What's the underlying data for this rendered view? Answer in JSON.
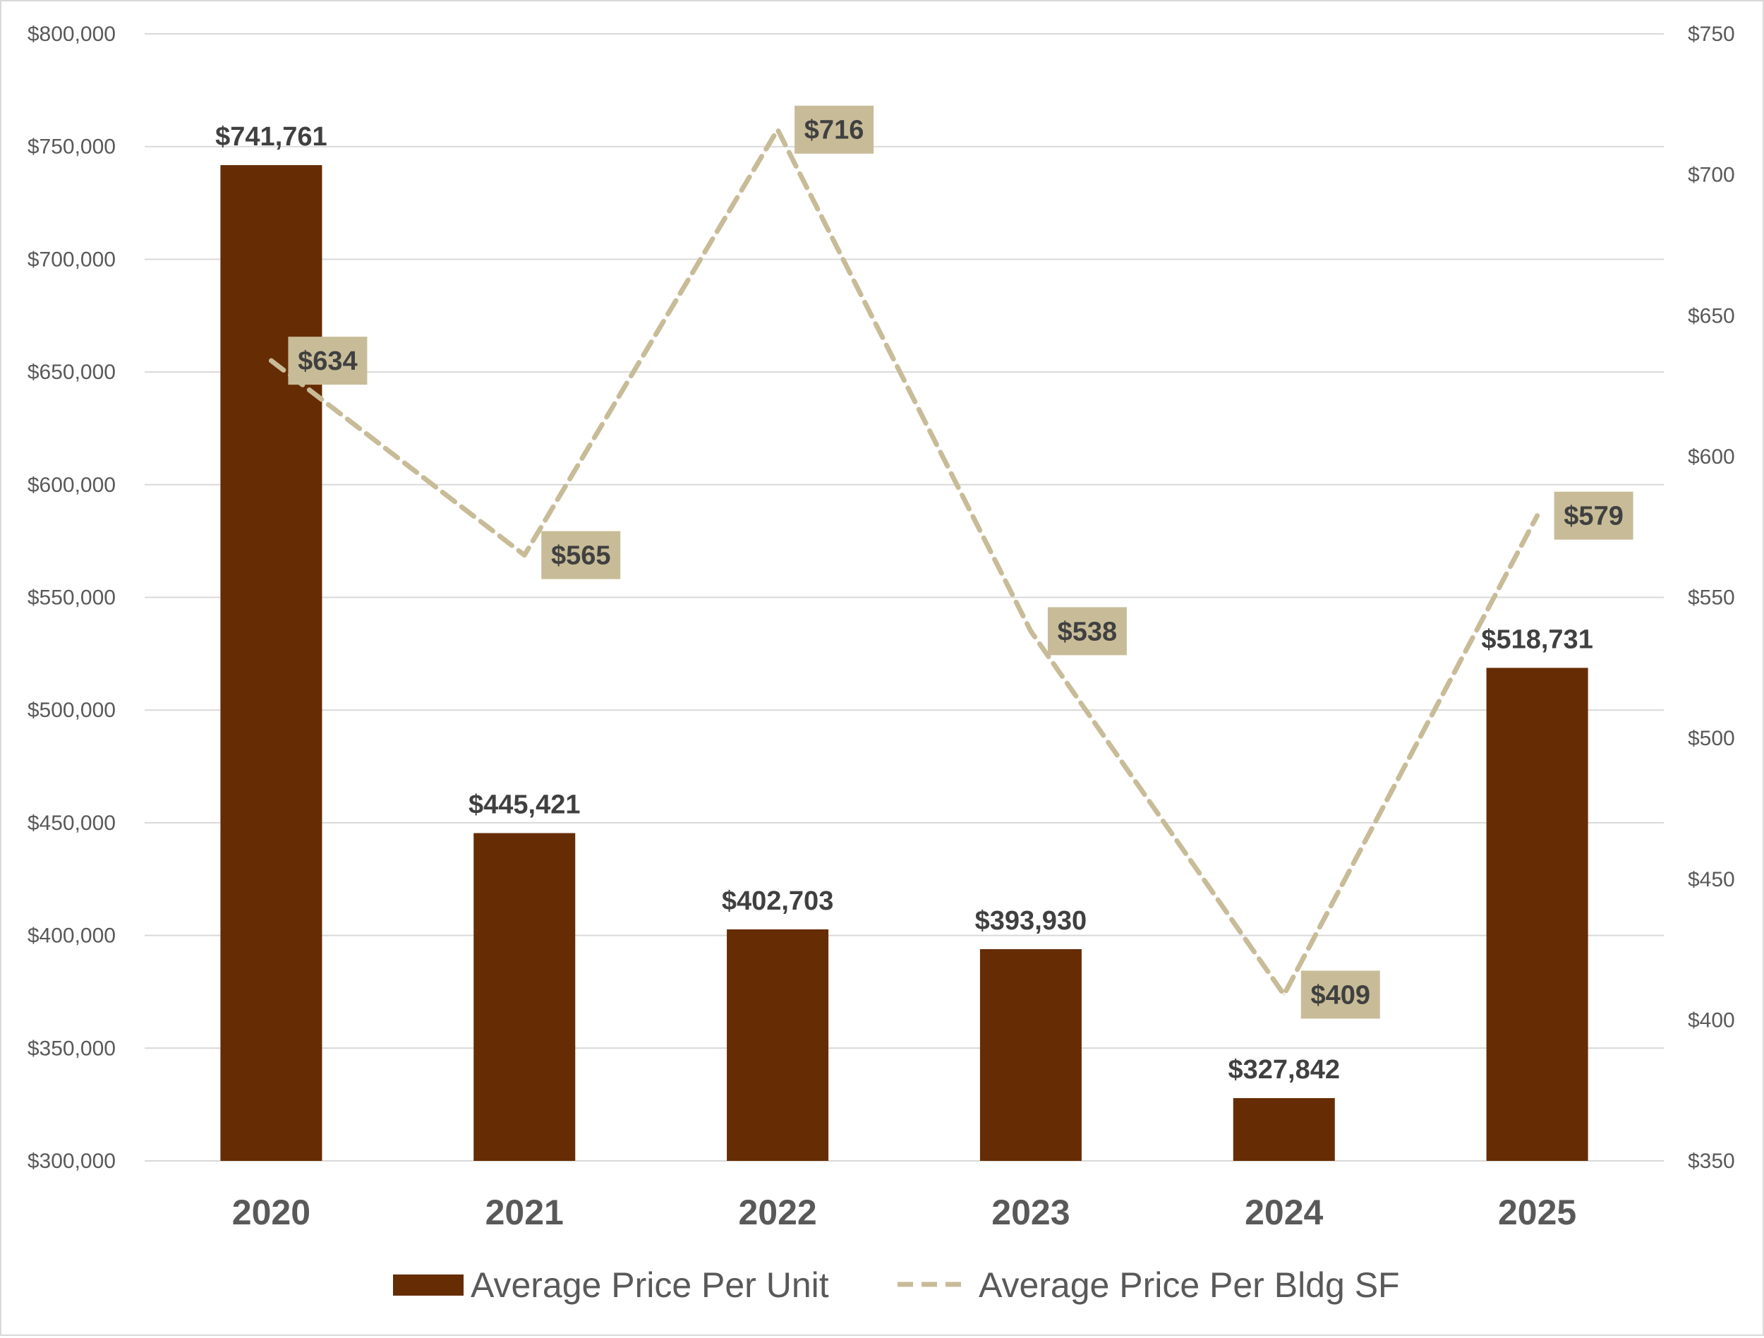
{
  "chart_data": {
    "type": "bar",
    "categories": [
      "2020",
      "2021",
      "2022",
      "2023",
      "2024",
      "2025"
    ],
    "series": [
      {
        "name": "Average Price Per Unit",
        "type": "bar",
        "axis": "left",
        "values": [
          741761,
          445421,
          402703,
          393930,
          327842,
          518731
        ],
        "labels": [
          "$741,761",
          "$445,421",
          "$402,703",
          "$393,930",
          "$327,842",
          "$518,731"
        ],
        "color": "#662c03"
      },
      {
        "name": "Average Price Per Bldg SF",
        "type": "line",
        "style": "dashed",
        "axis": "right",
        "values": [
          634,
          565,
          716,
          538,
          409,
          579
        ],
        "labels": [
          "$634",
          "$565",
          "$716",
          "$538",
          "$409",
          "$579"
        ],
        "color": "#c8bc98"
      }
    ],
    "y_left": {
      "min": 300000,
      "max": 800000,
      "ticks": [
        "$300,000",
        "$350,000",
        "$400,000",
        "$450,000",
        "$500,000",
        "$550,000",
        "$600,000",
        "$650,000",
        "$700,000",
        "$750,000",
        "$800,000"
      ]
    },
    "y_right": {
      "min": 350,
      "max": 750,
      "ticks": [
        "$350",
        "$400",
        "$450",
        "$500",
        "$550",
        "$600",
        "$650",
        "$700",
        "$750"
      ]
    },
    "grid": true,
    "legend_position": "bottom",
    "colors": {
      "bar": "#662c03",
      "line": "#c8bc98",
      "label_box": "#c8bc98",
      "grid": "#d9d9d9"
    }
  }
}
